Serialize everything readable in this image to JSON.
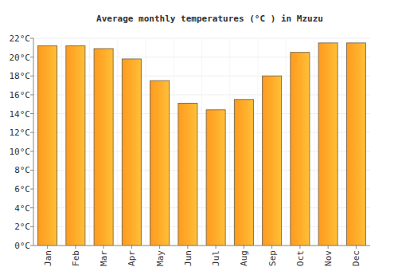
{
  "chart_data": {
    "type": "bar",
    "title": "Average monthly temperatures (°C ) in Mzuzu",
    "categories": [
      "Jan",
      "Feb",
      "Mar",
      "Apr",
      "May",
      "Jun",
      "Jul",
      "Aug",
      "Sep",
      "Oct",
      "Nov",
      "Dec"
    ],
    "values": [
      21.2,
      21.2,
      20.9,
      19.8,
      17.5,
      15.1,
      14.4,
      15.5,
      18.0,
      20.5,
      21.5,
      21.5
    ],
    "color": "#ffa530",
    "ylim": [
      0,
      22
    ],
    "yticks": [
      {
        "value": 0,
        "label": "0°C"
      },
      {
        "value": 2,
        "label": "2°C"
      },
      {
        "value": 4,
        "label": "4°C"
      },
      {
        "value": 6,
        "label": "6°C"
      },
      {
        "value": 8,
        "label": "8°C"
      },
      {
        "value": 10,
        "label": "10°C"
      },
      {
        "value": 12,
        "label": "12°C"
      },
      {
        "value": 14,
        "label": "14°C"
      },
      {
        "value": 16,
        "label": "16°C"
      },
      {
        "value": 18,
        "label": "18°C"
      },
      {
        "value": 20,
        "label": "20°C"
      },
      {
        "value": 22,
        "label": "22°C"
      }
    ],
    "grid": true
  }
}
